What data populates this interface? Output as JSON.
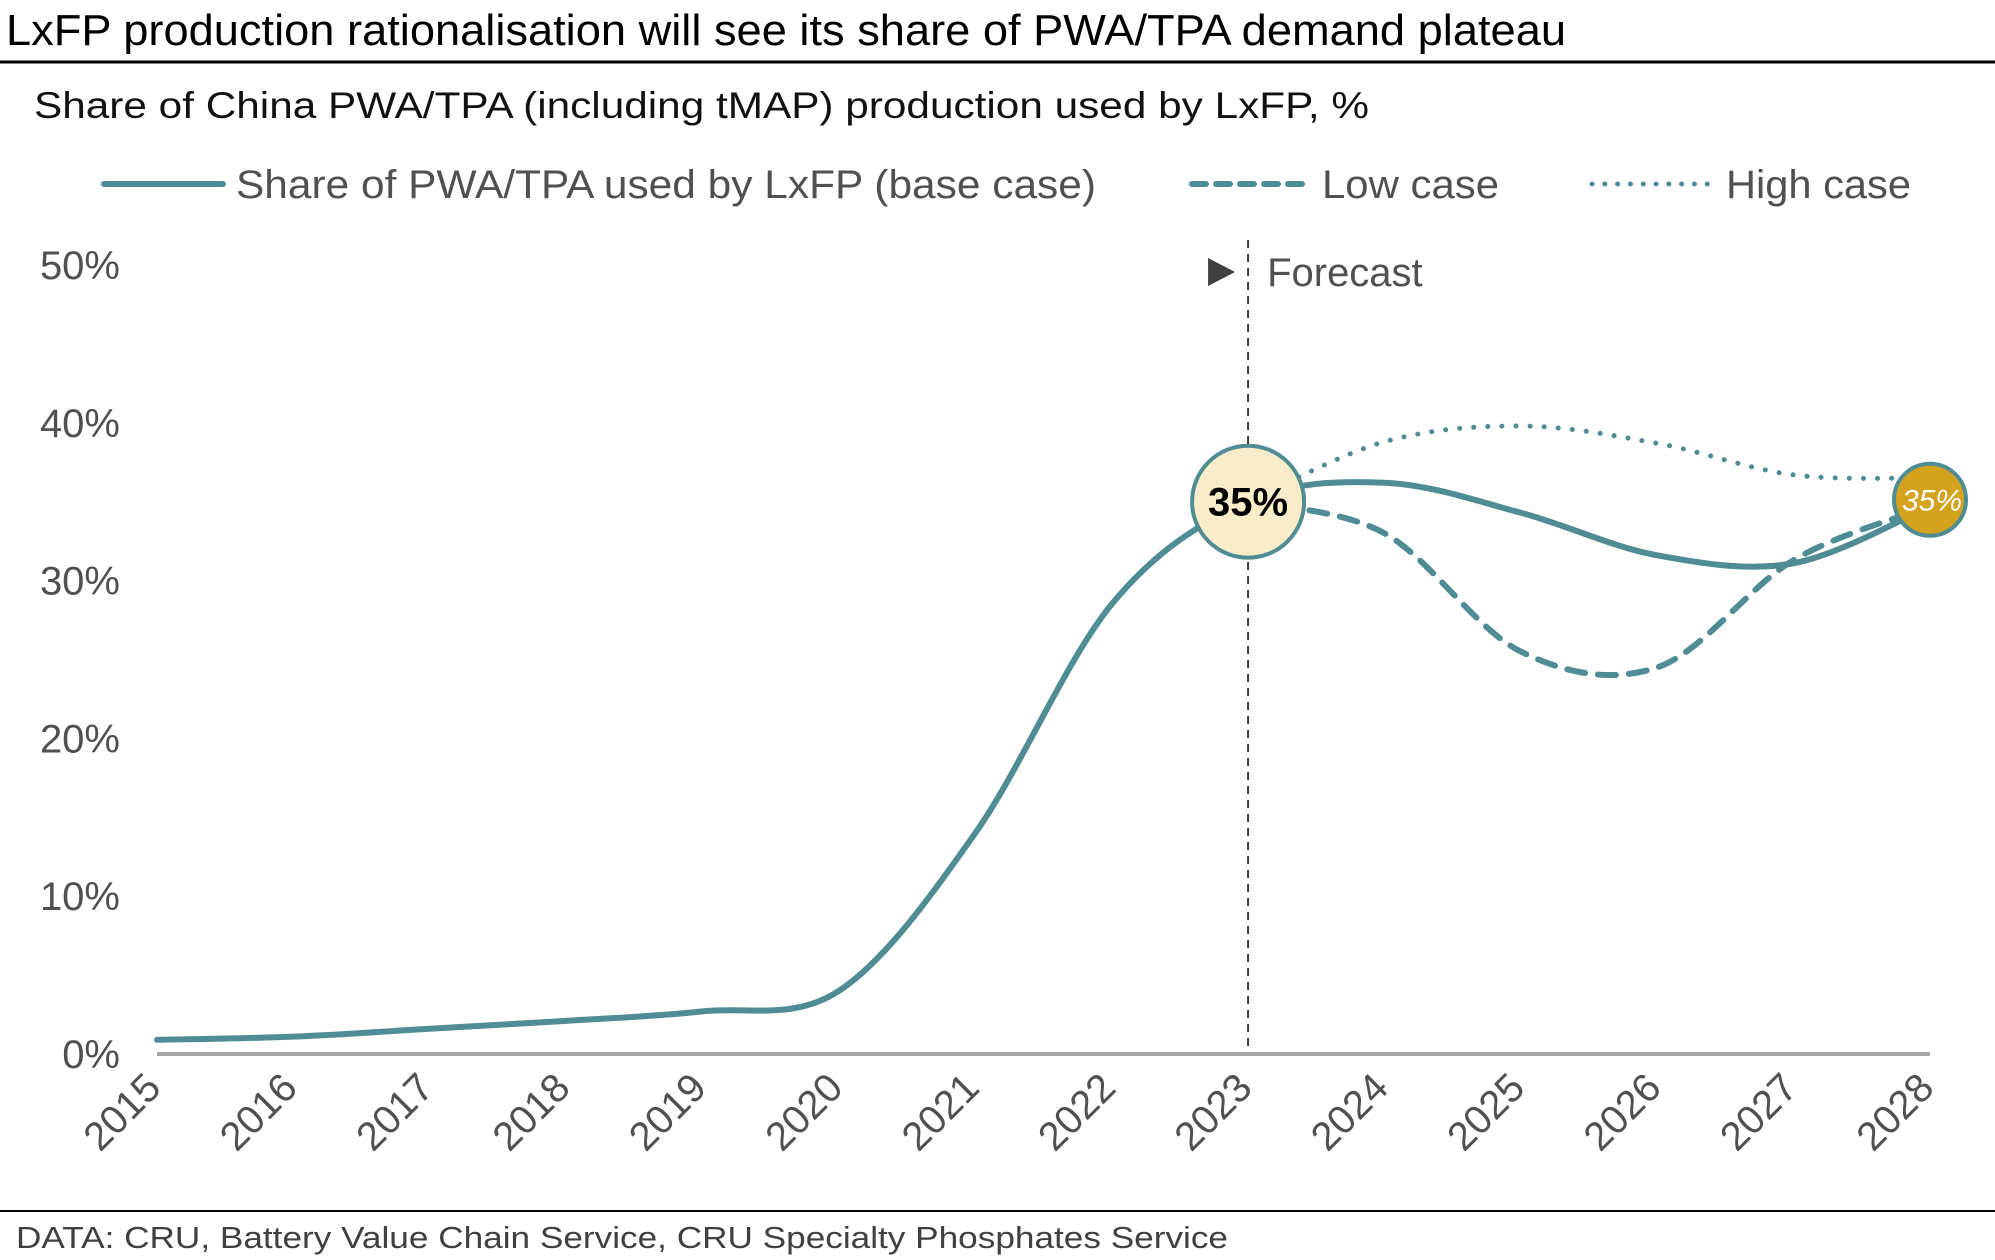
{
  "chart_data": {
    "type": "line",
    "title": "LxFP production rationalisation will see its share of PWA/TPA demand plateau",
    "subtitle": "Share of China PWA/TPA (including tMAP) production used by LxFP, %",
    "xlabel": "",
    "ylabel": "",
    "x": [
      2015,
      2016,
      2017,
      2018,
      2019,
      2020,
      2021,
      2022,
      2023,
      2024,
      2025,
      2026,
      2027,
      2028
    ],
    "x_tick_labels": [
      "2015",
      "2016",
      "2017",
      "2018",
      "2019",
      "2020",
      "2021",
      "2022",
      "2023",
      "2024",
      "2025",
      "2026",
      "2027",
      "2028"
    ],
    "ylim": [
      0,
      50
    ],
    "y_ticks": [
      0,
      10,
      20,
      30,
      40,
      50
    ],
    "y_tick_labels": [
      "0%",
      "10%",
      "20%",
      "30%",
      "40%",
      "50%"
    ],
    "grid": false,
    "legend_position": "top",
    "series": [
      {
        "name": "Share of PWA/TPA used by LxFP (base case)",
        "style": "solid",
        "x": [
          2015,
          2016,
          2017,
          2018,
          2019,
          2020,
          2021,
          2022,
          2023,
          2024,
          2025,
          2026,
          2027,
          2028
        ],
        "values": [
          0.9,
          1.1,
          1.6,
          2.1,
          2.7,
          4.0,
          14.0,
          28.5,
          35.0,
          36.2,
          34.3,
          31.6,
          31.1,
          34.7
        ]
      },
      {
        "name": "Low case",
        "style": "dashed",
        "x": [
          2023,
          2024,
          2025,
          2026,
          2027,
          2028
        ],
        "values": [
          35.0,
          33.0,
          25.5,
          24.5,
          31.3,
          34.7
        ]
      },
      {
        "name": "High case",
        "style": "dotted",
        "x": [
          2023,
          2024,
          2025,
          2026,
          2027,
          2028
        ],
        "values": [
          35.0,
          38.8,
          39.8,
          38.7,
          36.7,
          36.5
        ]
      }
    ],
    "annotations": {
      "forecast_label": "Forecast",
      "forecast_start_x": 2023,
      "highlight_start": {
        "x": 2023,
        "value": 35,
        "label": "35%"
      },
      "highlight_end": {
        "x": 2028,
        "value": 35,
        "label": "35%"
      }
    },
    "source": "DATA: CRU, Battery Value Chain Service, CRU Specialty Phosphates Service",
    "colors": {
      "series": "#4f8c93",
      "axis": "#a6a6a6",
      "text": "#505050",
      "highlight_start_fill": "#f8ecc9",
      "highlight_end_fill": "#d4a21c",
      "forecast_line": "#404040"
    }
  }
}
